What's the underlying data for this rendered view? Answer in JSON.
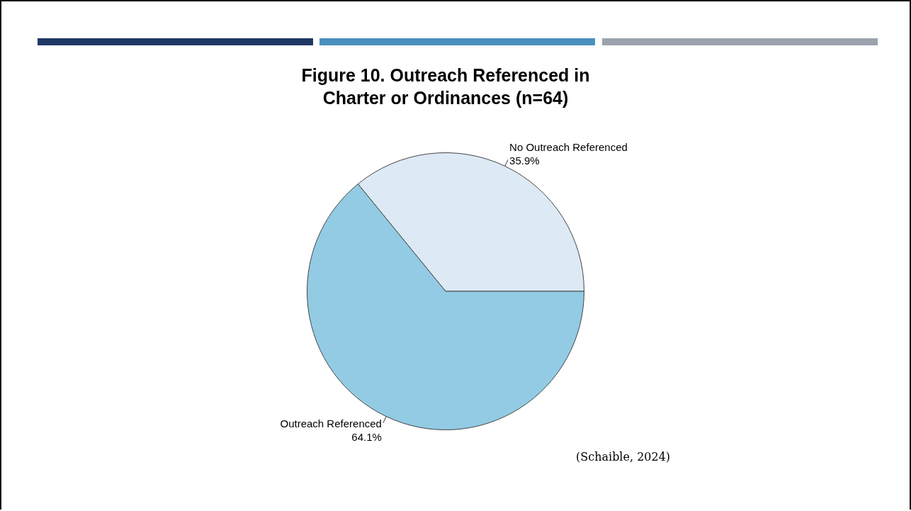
{
  "chart_data": {
    "type": "pie",
    "title": "Figure 10. Outreach Referenced in Charter or Ordinances (n=64)",
    "categories": [
      "No Outreach Referenced",
      "Outreach Referenced"
    ],
    "values": [
      35.9,
      64.1
    ],
    "colors": [
      "#dde9f5",
      "#93cbe4"
    ],
    "value_labels": [
      "35.9%",
      "64.1%"
    ],
    "annotations": [
      "(Schaible, 2024)"
    ]
  }
}
